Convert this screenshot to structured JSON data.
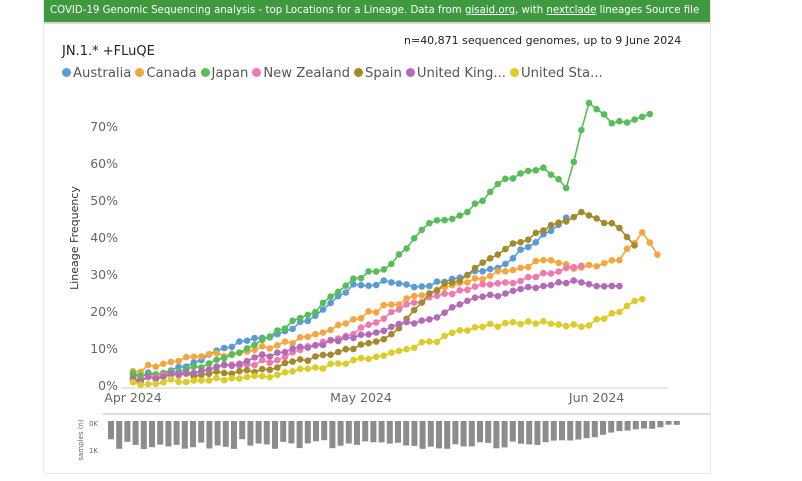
{
  "banner": {
    "prefix": "COVID-19 Genomic Sequencing analysis - top Locations for a Lineage. Data from ",
    "link1": "gisaid.org",
    "middle": ", with ",
    "link2": "nextclade",
    "suffix": " lineages Source file"
  },
  "chart_data": {
    "type": "line",
    "title": "JN.1.* +FLuQE",
    "subtitle": "n=40,871 sequenced genomes, up to 9 June 2024",
    "ylabel": "Lineage Frequency",
    "xlabel": "",
    "ylim": [
      0,
      80
    ],
    "yticks": [
      "0%",
      "10%",
      "20%",
      "30%",
      "40%",
      "50%",
      "60%",
      "70%"
    ],
    "xticks": [
      "Apr 2024",
      "May 2024",
      "Jun 2024"
    ],
    "x_start": "2024-04-01",
    "grid": false,
    "legend": "top",
    "series": [
      {
        "name": "Australia",
        "color": "#5b9bd5",
        "x": [
          "2024-04-01",
          "2024-04-05",
          "2024-04-10",
          "2024-04-15",
          "2024-04-20",
          "2024-04-25",
          "2024-04-30",
          "2024-05-05",
          "2024-05-10",
          "2024-05-15",
          "2024-05-20",
          "2024-05-25",
          "2024-05-28"
        ],
        "values": [
          3,
          3.5,
          7,
          12,
          14,
          19,
          27.5,
          28,
          27,
          30,
          33,
          41,
          45.5
        ]
      },
      {
        "name": "Canada",
        "color": "#f4a640",
        "x": [
          "2024-04-01",
          "2024-04-05",
          "2024-04-10",
          "2024-04-15",
          "2024-04-20",
          "2024-04-25",
          "2024-04-30",
          "2024-05-05",
          "2024-05-10",
          "2024-05-15",
          "2024-05-20",
          "2024-05-25",
          "2024-05-30",
          "2024-06-04",
          "2024-06-07",
          "2024-06-09"
        ],
        "values": [
          4,
          6,
          8,
          9,
          11,
          14,
          18,
          22,
          25,
          28,
          31,
          34,
          32,
          34,
          41.5,
          35.5
        ]
      },
      {
        "name": "Japan",
        "color": "#57be57",
        "x": [
          "2024-04-01",
          "2024-04-05",
          "2024-04-10",
          "2024-04-15",
          "2024-04-20",
          "2024-04-25",
          "2024-04-30",
          "2024-05-05",
          "2024-05-10",
          "2024-05-15",
          "2024-05-20",
          "2024-05-25",
          "2024-05-28",
          "2024-05-31",
          "2024-06-03",
          "2024-06-06",
          "2024-06-08"
        ],
        "values": [
          3.5,
          3.5,
          5,
          9,
          15,
          20,
          29,
          33,
          44,
          47,
          56,
          59,
          53.5,
          76.5,
          71,
          72,
          73.5
        ]
      },
      {
        "name": "New Zealand",
        "color": "#f07ab0",
        "x": [
          "2024-04-01",
          "2024-04-05",
          "2024-04-10",
          "2024-04-15",
          "2024-04-20",
          "2024-04-25",
          "2024-04-30",
          "2024-05-05",
          "2024-05-10",
          "2024-05-15",
          "2024-05-20",
          "2024-05-25",
          "2024-05-30"
        ],
        "values": [
          2,
          3,
          4,
          5.5,
          7,
          11,
          14,
          20,
          24,
          26,
          28,
          30.5,
          32.5
        ]
      },
      {
        "name": "Spain",
        "color": "#a48a2a",
        "x": [
          "2024-04-01",
          "2024-04-05",
          "2024-04-10",
          "2024-04-15",
          "2024-04-20",
          "2024-04-25",
          "2024-04-30",
          "2024-05-05",
          "2024-05-10",
          "2024-05-15",
          "2024-05-20",
          "2024-05-25",
          "2024-05-30",
          "2024-06-03",
          "2024-06-06"
        ],
        "values": [
          2,
          2.5,
          3,
          4,
          5,
          8,
          10,
          14,
          25,
          30,
          37,
          42,
          47,
          44,
          38
        ]
      },
      {
        "name": "United Kingdom",
        "color": "#b36bb8",
        "x": [
          "2024-04-01",
          "2024-04-05",
          "2024-04-10",
          "2024-04-15",
          "2024-04-20",
          "2024-04-25",
          "2024-04-30",
          "2024-05-05",
          "2024-05-10",
          "2024-05-15",
          "2024-05-20",
          "2024-05-25",
          "2024-05-30",
          "2024-06-04"
        ],
        "values": [
          1.5,
          2.5,
          4,
          6,
          9,
          11,
          13,
          16,
          18,
          23,
          25,
          27,
          28,
          27
        ]
      },
      {
        "name": "United States",
        "color": "#dccc2a",
        "x": [
          "2024-04-01",
          "2024-04-05",
          "2024-04-10",
          "2024-04-15",
          "2024-04-20",
          "2024-04-25",
          "2024-04-30",
          "2024-05-05",
          "2024-05-10",
          "2024-05-15",
          "2024-05-20",
          "2024-05-25",
          "2024-05-30",
          "2024-06-04",
          "2024-06-07"
        ],
        "values": [
          1,
          1,
          1.5,
          2,
          3,
          5,
          7,
          9,
          12,
          15,
          17,
          17.5,
          16,
          20,
          23.5
        ]
      }
    ],
    "legend_labels": [
      "Australia",
      "Canada",
      "Japan",
      "New Zealand",
      "Spain",
      "United King...",
      "United Sta..."
    ],
    "samples_axis": {
      "label": "samples (n)",
      "ticks": [
        "0K",
        "1K"
      ]
    }
  }
}
